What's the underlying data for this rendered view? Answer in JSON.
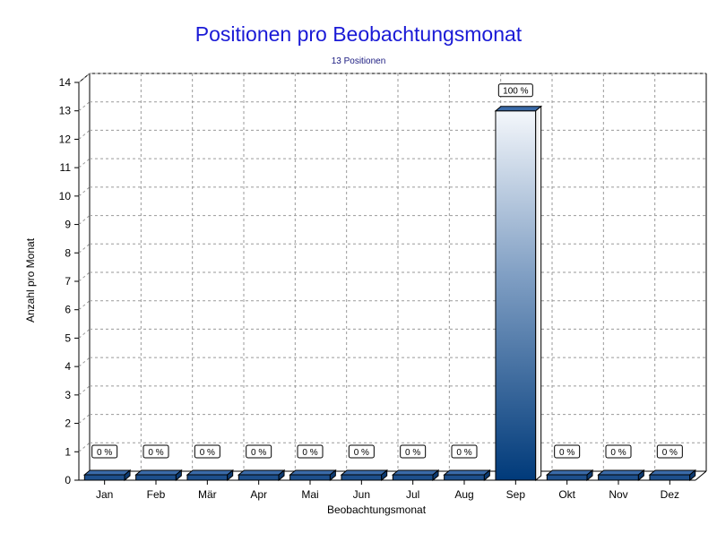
{
  "chart_data": {
    "type": "bar",
    "title": "Positionen pro Beobachtungsmonat",
    "subtitle": "13 Positionen",
    "xlabel": "Beobachtungsmonat",
    "ylabel": "Anzahl pro Monat",
    "categories": [
      "Jan",
      "Feb",
      "Mär",
      "Apr",
      "Mai",
      "Jun",
      "Jul",
      "Aug",
      "Sep",
      "Okt",
      "Nov",
      "Dez"
    ],
    "values": [
      0,
      0,
      0,
      0,
      0,
      0,
      0,
      0,
      13,
      0,
      0,
      0
    ],
    "data_labels": [
      "0 %",
      "0 %",
      "0 %",
      "0 %",
      "0 %",
      "0 %",
      "0 %",
      "0 %",
      "100 %",
      "0 %",
      "0 %",
      "0 %"
    ],
    "ylim": [
      0,
      14
    ],
    "yticks": [
      0,
      1,
      2,
      3,
      4,
      5,
      6,
      7,
      8,
      9,
      10,
      11,
      12,
      13,
      14
    ],
    "grid": true,
    "style": "3d",
    "colors": {
      "title": "#1a1ad6",
      "subtitle": "#1a1a80",
      "bar_top": "#f4f7fb",
      "bar_bottom": "#003a7a",
      "grid": "#9a9a9a"
    }
  }
}
